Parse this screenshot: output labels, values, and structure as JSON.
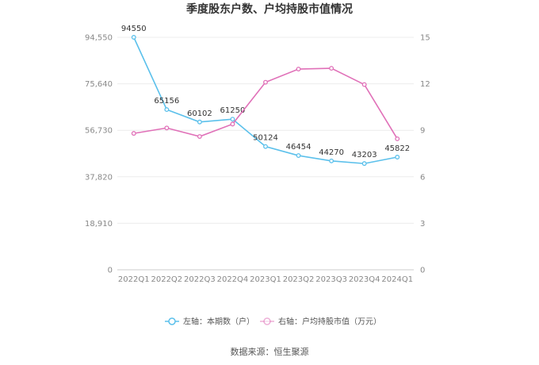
{
  "chart_data": {
    "type": "line",
    "title": "季度股东户数、户均持股市值情况",
    "categories": [
      "2022Q1",
      "2022Q2",
      "2022Q3",
      "2022Q4",
      "2023Q1",
      "2023Q2",
      "2023Q3",
      "2023Q4",
      "2024Q1"
    ],
    "left_axis": {
      "ticks": [
        "0",
        "18,910",
        "37,820",
        "56,730",
        "75,640",
        "94,550"
      ],
      "ylim": [
        0,
        94550
      ]
    },
    "right_axis": {
      "ticks": [
        "0",
        "3",
        "6",
        "9",
        "12",
        "15"
      ],
      "ylim": [
        0,
        15
      ]
    },
    "series": [
      {
        "name": "左轴：本期数（户）",
        "axis": "left",
        "color": "#5bc0eb",
        "values": [
          94550,
          65156,
          60102,
          61250,
          50124,
          46454,
          44270,
          43203,
          45822
        ],
        "labels": [
          "94550",
          "65156",
          "60102",
          "61250",
          "50124",
          "46454",
          "44270",
          "43203",
          "45822"
        ]
      },
      {
        "name": "右轴：户均持股市值（万元）",
        "axis": "right",
        "color": "#e070b8",
        "values": [
          8.8,
          9.15,
          8.6,
          9.4,
          12.1,
          12.95,
          13.0,
          11.95,
          8.45
        ]
      }
    ],
    "grid": true,
    "legend_position": "bottom"
  },
  "source": "数据来源：恒生聚源"
}
